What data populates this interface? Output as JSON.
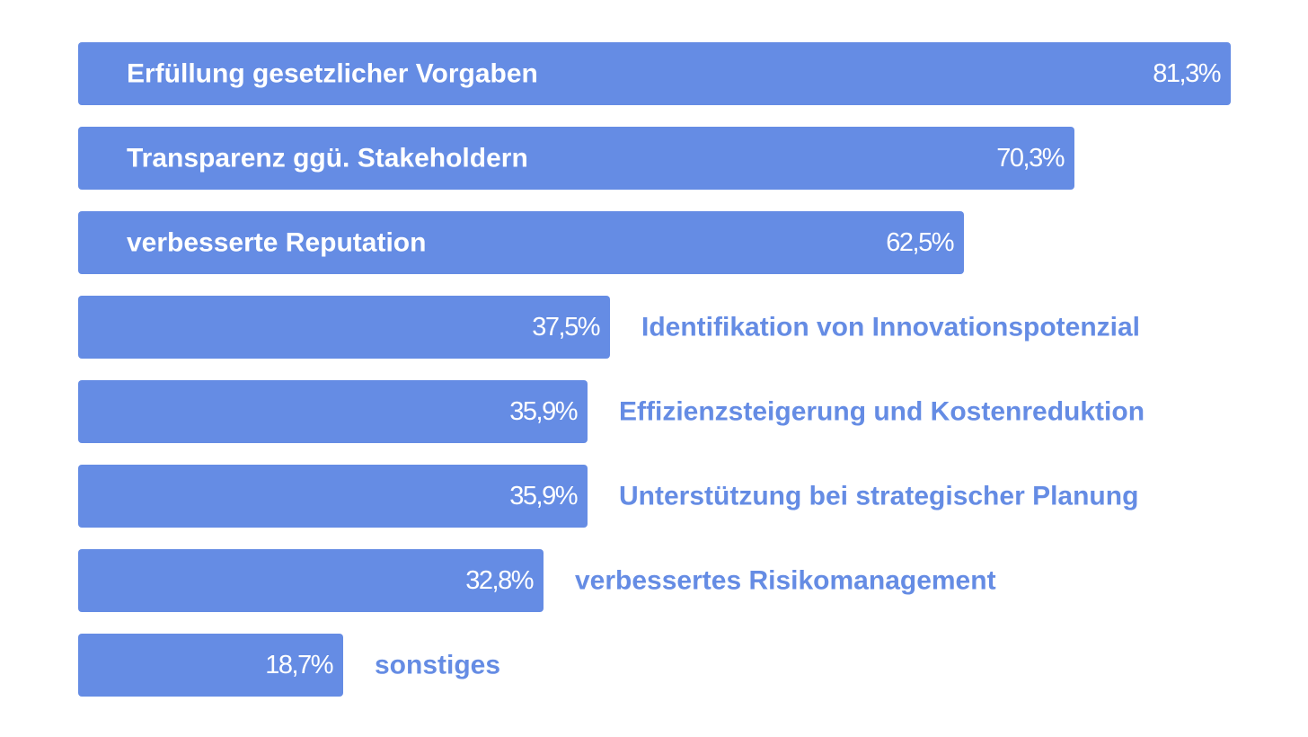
{
  "chart_data": {
    "type": "bar",
    "orientation": "horizontal",
    "categories": [
      "Erfüllung gesetzlicher Vorgaben",
      "Transparenz ggü. Stakeholdern",
      "verbesserte Reputation",
      "Identifikation von Innovationspotenzial",
      "Effizienzsteigerung und Kostenreduktion",
      "Unterstützung bei strategischer Planung",
      "verbessertes Risikomanagement",
      "sonstiges"
    ],
    "values": [
      81.3,
      70.3,
      62.5,
      37.5,
      35.9,
      35.9,
      32.8,
      18.7
    ],
    "value_labels": [
      "81,3%",
      "70,3%",
      "62,5%",
      "37,5%",
      "35,9%",
      "35,9%",
      "32,8%",
      "18,7%"
    ],
    "label_placement": [
      "inside",
      "inside",
      "inside",
      "outside",
      "outside",
      "outside",
      "outside",
      "outside"
    ],
    "xlim": [
      0,
      81.3
    ],
    "unit": "%",
    "title": "",
    "xlabel": "",
    "ylabel": "",
    "grid": false,
    "legend": "none",
    "bar_color": "#658CE4",
    "inside_label_color": "#FFFFFF",
    "outside_label_color": "#658CE4"
  }
}
